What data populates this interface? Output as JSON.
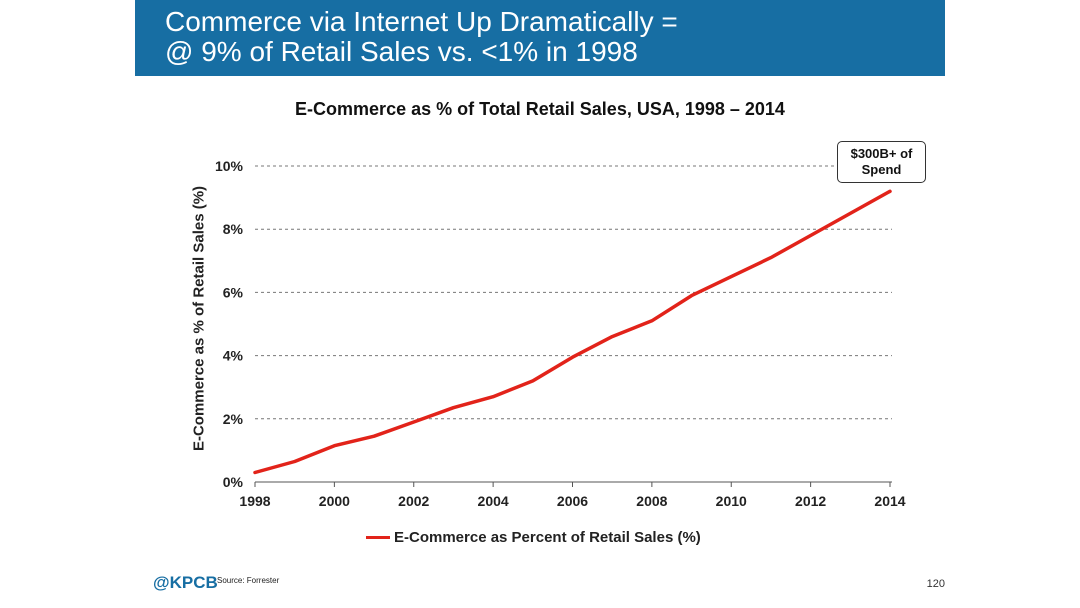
{
  "banner": {
    "line1": "Commerce via Internet Up Dramatically =",
    "line2": "@ 9% of Retail Sales vs. <1% in 1998",
    "color": "#176ea3"
  },
  "chart_data": {
    "type": "line",
    "title": "E-Commerce as % of Total Retail Sales, USA, 1998 – 2014",
    "xlabel": "",
    "ylabel": "E-Commerce as % of Retail Sales (%)",
    "x": [
      1998,
      1999,
      2000,
      2001,
      2002,
      2003,
      2004,
      2005,
      2006,
      2007,
      2008,
      2009,
      2010,
      2011,
      2012,
      2013,
      2014
    ],
    "series": [
      {
        "name": "E-Commerce as Percent of Retail Sales (%)",
        "color": "#e2231a",
        "values": [
          0.3,
          0.65,
          1.15,
          1.45,
          1.9,
          2.35,
          2.7,
          3.2,
          3.95,
          4.6,
          5.1,
          5.9,
          6.5,
          7.1,
          7.8,
          8.5,
          9.2
        ]
      }
    ],
    "ylim": [
      0,
      10
    ],
    "xlim": [
      1998,
      2014
    ],
    "y_ticks": [
      0,
      2,
      4,
      6,
      8,
      10
    ],
    "y_tick_labels": [
      "0%",
      "2%",
      "4%",
      "6%",
      "8%",
      "10%"
    ],
    "x_ticks": [
      1998,
      2000,
      2002,
      2004,
      2006,
      2008,
      2010,
      2012,
      2014
    ],
    "x_tick_labels": [
      "1998",
      "2000",
      "2002",
      "2004",
      "2006",
      "2008",
      "2010",
      "2012",
      "2014"
    ],
    "grid": true,
    "legend": "bottom",
    "annotation": "$300B+ of Spend"
  },
  "footer": {
    "logo": "@KPCB",
    "source": "Source: Forrester",
    "page": "120"
  }
}
